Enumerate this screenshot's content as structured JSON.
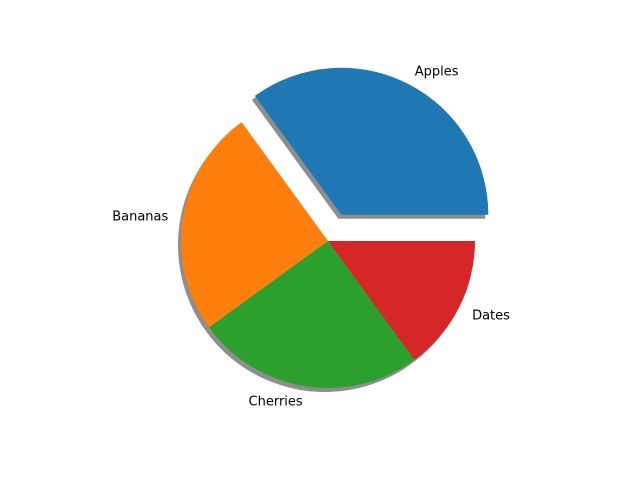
{
  "chart_data": {
    "type": "pie",
    "categories": [
      "Apples",
      "Bananas",
      "Cherries",
      "Dates"
    ],
    "values": [
      35,
      25,
      25,
      15
    ],
    "colors": [
      "#1f77b4",
      "#ff7f0e",
      "#2ca02c",
      "#d62728"
    ],
    "explode": [
      0.2,
      0,
      0,
      0
    ],
    "shadow": true,
    "start_angle_deg": 0,
    "direction": "counterclockwise",
    "labels": [
      "Apples",
      "Bananas",
      "Cherries",
      "Dates"
    ]
  }
}
